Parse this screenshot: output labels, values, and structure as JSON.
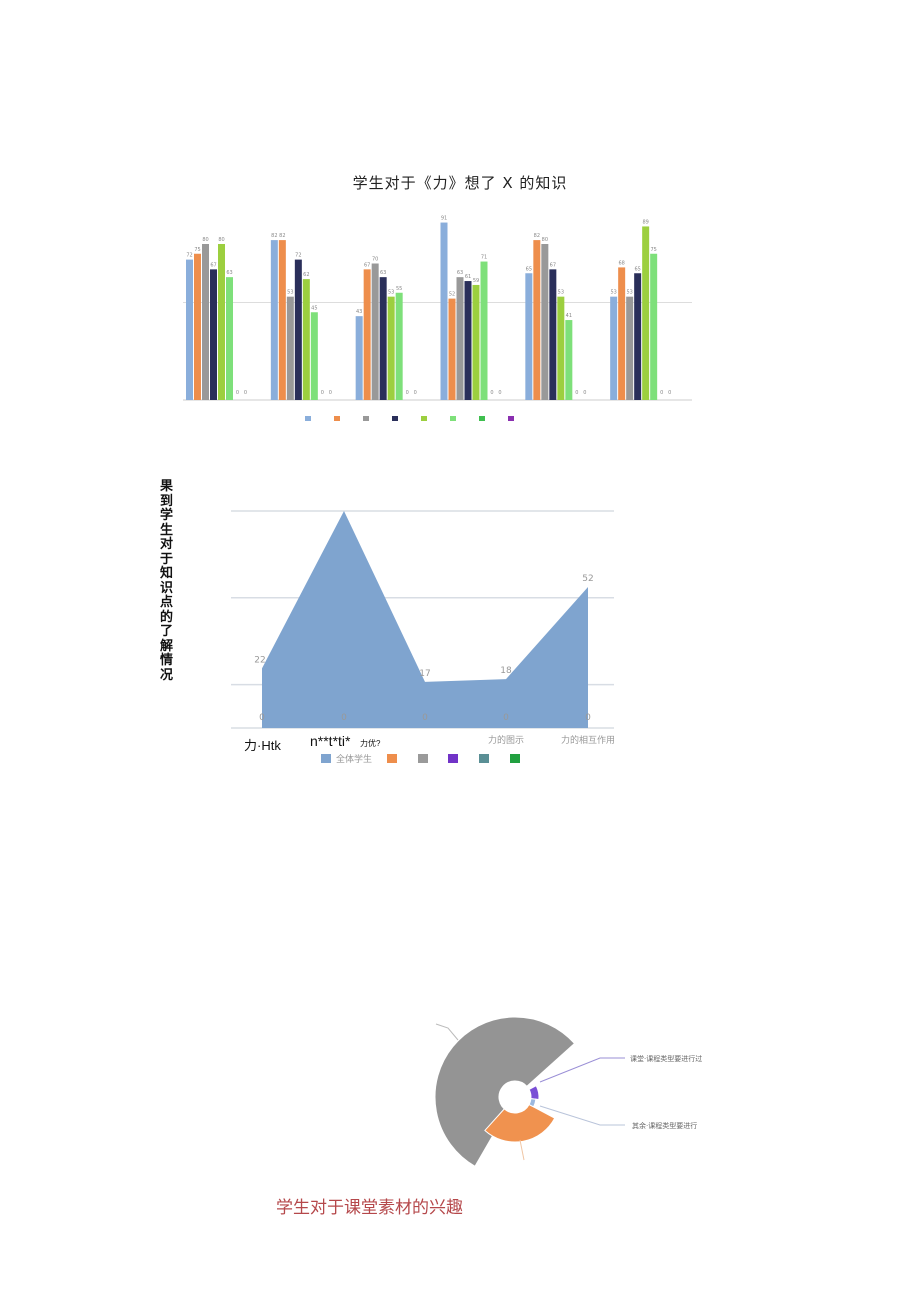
{
  "chart_data": [
    {
      "type": "bar",
      "title": "学生对于《力》想了 X 的知识",
      "categories": [
        "",
        "",
        "",
        "",
        "",
        ""
      ],
      "series": [
        {
          "name": "",
          "color": "#8aaedb",
          "values": [
            72,
            82,
            43,
            91,
            65,
            53
          ]
        },
        {
          "name": "",
          "color": "#ee8e4c",
          "values": [
            75,
            82,
            67,
            52,
            82,
            68
          ]
        },
        {
          "name": "",
          "color": "#999999",
          "values": [
            80,
            53,
            70,
            63,
            80,
            53
          ]
        },
        {
          "name": "",
          "color": "#2a2f5a",
          "values": [
            67,
            72,
            63,
            61,
            67,
            65
          ]
        },
        {
          "name": "",
          "color": "#9ccf3f",
          "values": [
            80,
            62,
            53,
            59,
            53,
            89
          ]
        },
        {
          "name": "",
          "color": "#7ee07a",
          "values": [
            63,
            45,
            55,
            71,
            41,
            75
          ]
        },
        {
          "name": "",
          "color": "#3fbf4f",
          "values": [
            0,
            0,
            0,
            0,
            0,
            0
          ]
        },
        {
          "name": "",
          "color": "#8a2fb0",
          "values": [
            0,
            0,
            0,
            0,
            0,
            0
          ]
        }
      ],
      "ylim": [
        0,
        100
      ],
      "legend": "bottom"
    },
    {
      "type": "area",
      "title": "",
      "side_title": "果到学生对于知识点的了解情况",
      "categories": [
        "力·Htk",
        "",
        "",
        "力的图示",
        "力的相互作用"
      ],
      "category_notes": [
        "力·Htk",
        "n**t*ti*",
        "力优?"
      ],
      "values": [
        22,
        80,
        17,
        18,
        52
      ],
      "value_labels": [
        "22",
        "",
        "17",
        "18",
        "52"
      ],
      "zero_labels": [
        "0",
        "0",
        "0",
        "0",
        "0"
      ],
      "ylim": [
        0,
        80
      ],
      "series": [
        {
          "name": "全体学生",
          "color": "#7fa4cf"
        },
        {
          "name": "",
          "color": "#ee8e4c"
        },
        {
          "name": "",
          "color": "#9a9a9a"
        },
        {
          "name": "",
          "color": "#7133c7"
        },
        {
          "name": "",
          "color": "#5a8f95"
        },
        {
          "name": "",
          "color": "#21a040"
        }
      ],
      "legend": "bottom"
    },
    {
      "type": "pie",
      "title": "学生对于课堂素材的兴趣",
      "labels": [
        "",
        "",
        "",
        ""
      ],
      "values": [
        66,
        20,
        7,
        4
      ],
      "colors": [
        "#949494",
        "#f0924f",
        "#7a4fd6",
        "#9cb8de"
      ],
      "annotations": [
        "课堂·课程类型要进行过",
        "其余·课程类型要进行"
      ]
    }
  ]
}
